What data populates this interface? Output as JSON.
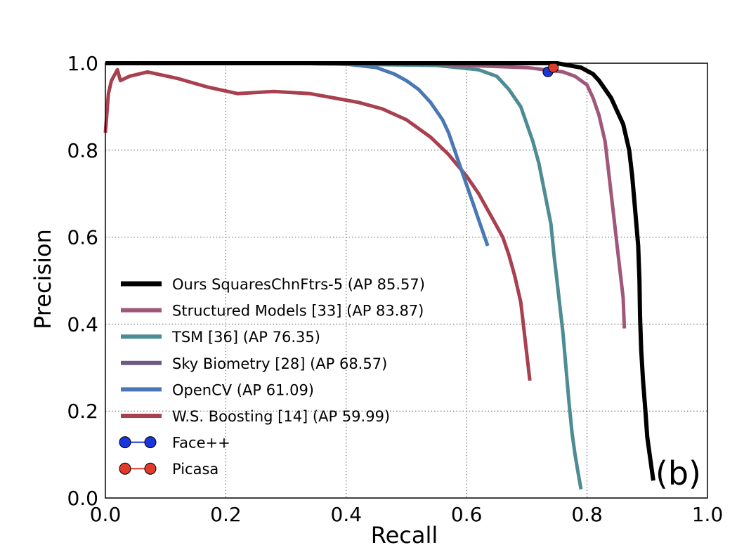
{
  "chart_data": {
    "type": "line",
    "title": "",
    "xlabel": "Recall",
    "ylabel": "Precision",
    "xlim": [
      0.0,
      1.0
    ],
    "ylim": [
      0.0,
      1.0
    ],
    "xticks": [
      "0.0",
      "0.2",
      "0.4",
      "0.6",
      "0.8",
      "1.0"
    ],
    "yticks": [
      "0.0",
      "0.2",
      "0.4",
      "0.6",
      "0.8",
      "1.0"
    ],
    "grid": true,
    "legend_position": "lower-left",
    "panel_label": "(b)",
    "series": [
      {
        "name": "Ours SquaresChnFtrs-5 (AP 85.57)",
        "color": "#000000",
        "points": [
          [
            0.0,
            1.0
          ],
          [
            0.3,
            1.0
          ],
          [
            0.6,
            1.0
          ],
          [
            0.75,
            1.0
          ],
          [
            0.79,
            0.99
          ],
          [
            0.81,
            0.975
          ],
          [
            0.82,
            0.96
          ],
          [
            0.83,
            0.94
          ],
          [
            0.84,
            0.92
          ],
          [
            0.85,
            0.89
          ],
          [
            0.86,
            0.86
          ],
          [
            0.87,
            0.8
          ],
          [
            0.875,
            0.74
          ],
          [
            0.88,
            0.66
          ],
          [
            0.885,
            0.58
          ],
          [
            0.887,
            0.5
          ],
          [
            0.888,
            0.42
          ],
          [
            0.89,
            0.34
          ],
          [
            0.893,
            0.27
          ],
          [
            0.897,
            0.2
          ],
          [
            0.9,
            0.14
          ],
          [
            0.905,
            0.09
          ],
          [
            0.91,
            0.04
          ]
        ]
      },
      {
        "name": "Structured Models [33] (AP 83.87)",
        "color": "#a0587a",
        "points": [
          [
            0.0,
            1.0
          ],
          [
            0.5,
            1.0
          ],
          [
            0.7,
            0.99
          ],
          [
            0.76,
            0.98
          ],
          [
            0.78,
            0.97
          ],
          [
            0.8,
            0.95
          ],
          [
            0.81,
            0.92
          ],
          [
            0.82,
            0.88
          ],
          [
            0.83,
            0.82
          ],
          [
            0.835,
            0.76
          ],
          [
            0.84,
            0.7
          ],
          [
            0.845,
            0.64
          ],
          [
            0.85,
            0.58
          ],
          [
            0.855,
            0.52
          ],
          [
            0.86,
            0.46
          ],
          [
            0.862,
            0.39
          ]
        ]
      },
      {
        "name": "TSM [36] (AP 76.35)",
        "color": "#4d8c94",
        "points": [
          [
            0.0,
            1.0
          ],
          [
            0.3,
            1.0
          ],
          [
            0.55,
            0.995
          ],
          [
            0.62,
            0.985
          ],
          [
            0.65,
            0.97
          ],
          [
            0.67,
            0.94
          ],
          [
            0.69,
            0.9
          ],
          [
            0.7,
            0.86
          ],
          [
            0.71,
            0.82
          ],
          [
            0.72,
            0.77
          ],
          [
            0.73,
            0.7
          ],
          [
            0.74,
            0.63
          ],
          [
            0.745,
            0.56
          ],
          [
            0.75,
            0.5
          ],
          [
            0.755,
            0.44
          ],
          [
            0.76,
            0.38
          ],
          [
            0.765,
            0.3
          ],
          [
            0.77,
            0.22
          ],
          [
            0.775,
            0.15
          ],
          [
            0.78,
            0.1
          ],
          [
            0.785,
            0.06
          ],
          [
            0.79,
            0.02
          ]
        ]
      },
      {
        "name": "Sky Biometry [28] (AP 68.57)",
        "color": "#6c5a80",
        "points": [
          [
            0.0,
            1.0
          ],
          [
            0.3,
            1.0
          ]
        ]
      },
      {
        "name": "OpenCV (AP 61.09)",
        "color": "#4a78b5",
        "points": [
          [
            0.3,
            1.0
          ],
          [
            0.4,
            0.998
          ],
          [
            0.45,
            0.99
          ],
          [
            0.48,
            0.975
          ],
          [
            0.5,
            0.96
          ],
          [
            0.52,
            0.94
          ],
          [
            0.54,
            0.91
          ],
          [
            0.56,
            0.87
          ],
          [
            0.57,
            0.84
          ],
          [
            0.58,
            0.8
          ],
          [
            0.59,
            0.76
          ],
          [
            0.6,
            0.72
          ],
          [
            0.61,
            0.68
          ],
          [
            0.62,
            0.64
          ],
          [
            0.63,
            0.6
          ],
          [
            0.635,
            0.58
          ]
        ]
      },
      {
        "name": "W.S. Boosting [14] (AP 59.99)",
        "color": "#a8404f",
        "points": [
          [
            0.0,
            0.84
          ],
          [
            0.005,
            0.93
          ],
          [
            0.01,
            0.96
          ],
          [
            0.02,
            0.985
          ],
          [
            0.025,
            0.96
          ],
          [
            0.04,
            0.97
          ],
          [
            0.07,
            0.98
          ],
          [
            0.12,
            0.965
          ],
          [
            0.17,
            0.945
          ],
          [
            0.22,
            0.93
          ],
          [
            0.28,
            0.935
          ],
          [
            0.34,
            0.93
          ],
          [
            0.38,
            0.92
          ],
          [
            0.42,
            0.91
          ],
          [
            0.46,
            0.895
          ],
          [
            0.5,
            0.87
          ],
          [
            0.54,
            0.83
          ],
          [
            0.57,
            0.79
          ],
          [
            0.6,
            0.74
          ],
          [
            0.62,
            0.7
          ],
          [
            0.64,
            0.65
          ],
          [
            0.66,
            0.6
          ],
          [
            0.67,
            0.56
          ],
          [
            0.68,
            0.51
          ],
          [
            0.69,
            0.45
          ],
          [
            0.695,
            0.39
          ],
          [
            0.7,
            0.33
          ],
          [
            0.705,
            0.27
          ]
        ]
      },
      {
        "name": "Face++",
        "color": "#1a35d9",
        "marker": true,
        "points": [
          [
            0.735,
            0.98
          ]
        ]
      },
      {
        "name": "Picasa",
        "color": "#e03a2a",
        "marker": true,
        "points": [
          [
            0.744,
            0.99
          ]
        ]
      }
    ]
  }
}
